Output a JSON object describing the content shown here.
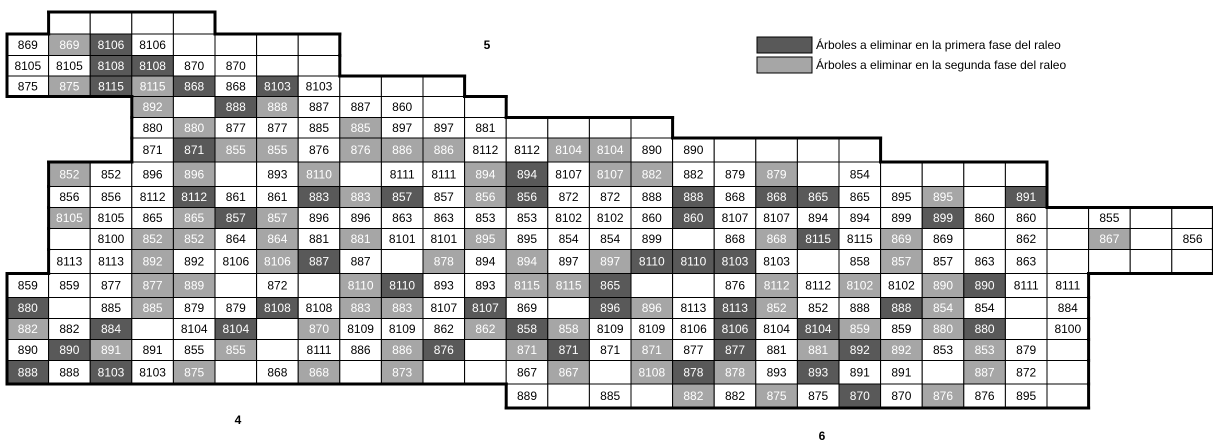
{
  "zones": [
    "5",
    "4",
    "6"
  ],
  "legend": [
    {
      "shade": "dark",
      "color": "#595959",
      "label": "Árboles a eliminar en la primera fase del raleo"
    },
    {
      "shade": "light",
      "color": "#a6a6a6",
      "label": "Árboles a eliminar en la segunda fase del raleo"
    }
  ],
  "grid": {
    "rows": [
      [
        null,
        null,
        null,
        null
      ],
      [
        {
          "text": "869"
        },
        {
          "text": "869",
          "shade": "light"
        },
        {
          "text": "8106",
          "shade": "dark"
        },
        {
          "text": "8106"
        },
        null,
        null,
        null,
        null
      ],
      [
        {
          "text": "8105"
        },
        {
          "text": "8105"
        },
        {
          "text": "8108",
          "shade": "dark"
        },
        {
          "text": "8108",
          "shade": "dark"
        },
        {
          "text": "870"
        },
        {
          "text": "870"
        },
        null,
        null
      ],
      [
        {
          "text": "875"
        },
        {
          "text": "875",
          "shade": "light"
        },
        {
          "text": "8115",
          "shade": "dark"
        },
        {
          "text": "8115",
          "shade": "light"
        },
        {
          "text": "868",
          "shade": "dark"
        },
        {
          "text": "868"
        },
        {
          "text": "8103",
          "shade": "dark"
        },
        {
          "text": "8103"
        },
        null,
        null,
        null
      ],
      [
        {
          "text": "892",
          "shade": "light"
        },
        null,
        {
          "text": "888",
          "shade": "dark"
        },
        {
          "text": "888",
          "shade": "light"
        },
        {
          "text": "887"
        },
        {
          "text": "887"
        },
        {
          "text": "860"
        },
        null,
        null
      ],
      [
        {
          "text": "880"
        },
        {
          "text": "880",
          "shade": "light"
        },
        {
          "text": "877"
        },
        {
          "text": "877"
        },
        {
          "text": "885"
        },
        {
          "text": "885",
          "shade": "light"
        },
        {
          "text": "897"
        },
        {
          "text": "897"
        },
        {
          "text": "881"
        },
        null,
        null,
        null,
        null
      ],
      [
        {
          "text": "871"
        },
        {
          "text": "871",
          "shade": "dark"
        },
        {
          "text": "855",
          "shade": "light"
        },
        {
          "text": "855",
          "shade": "light"
        },
        {
          "text": "876"
        },
        {
          "text": "876",
          "shade": "light"
        },
        {
          "text": "886",
          "shade": "light"
        },
        {
          "text": "886",
          "shade": "light"
        },
        {
          "text": "8112"
        },
        {
          "text": "8112"
        },
        {
          "text": "8104",
          "shade": "light"
        },
        {
          "text": "8104",
          "shade": "light"
        },
        {
          "text": "890"
        },
        {
          "text": "890"
        },
        null,
        null,
        null,
        null
      ],
      [
        {
          "text": "852",
          "shade": "light"
        },
        {
          "text": "852"
        },
        {
          "text": "896"
        },
        {
          "text": "896",
          "shade": "light"
        },
        null,
        {
          "text": "893"
        },
        {
          "text": "8110",
          "shade": "light"
        },
        null,
        {
          "text": "8111"
        },
        {
          "text": "8111"
        },
        {
          "text": "894",
          "shade": "light"
        },
        {
          "text": "894",
          "shade": "dark"
        },
        {
          "text": "8107"
        },
        {
          "text": "8107",
          "shade": "light"
        },
        {
          "text": "882",
          "shade": "light"
        },
        {
          "text": "882"
        },
        {
          "text": "879"
        },
        {
          "text": "879",
          "shade": "light"
        },
        null,
        {
          "text": "854"
        },
        null,
        null,
        null,
        null
      ],
      [
        {
          "text": "856"
        },
        {
          "text": "856"
        },
        {
          "text": "8112"
        },
        {
          "text": "8112",
          "shade": "dark"
        },
        {
          "text": "861"
        },
        {
          "text": "861"
        },
        {
          "text": "883",
          "shade": "dark"
        },
        {
          "text": "883",
          "shade": "light"
        },
        {
          "text": "857",
          "shade": "dark"
        },
        {
          "text": "857"
        },
        {
          "text": "856",
          "shade": "light"
        },
        {
          "text": "856",
          "shade": "dark"
        },
        {
          "text": "872"
        },
        {
          "text": "872"
        },
        {
          "text": "888"
        },
        {
          "text": "888",
          "shade": "dark"
        },
        {
          "text": "868"
        },
        {
          "text": "868",
          "shade": "dark"
        },
        {
          "text": "865",
          "shade": "dark"
        },
        {
          "text": "865"
        },
        {
          "text": "895"
        },
        {
          "text": "895",
          "shade": "light"
        },
        null,
        {
          "text": "891",
          "shade": "dark"
        }
      ],
      [
        {
          "text": "8105",
          "shade": "light"
        },
        {
          "text": "8105"
        },
        {
          "text": "865"
        },
        {
          "text": "865",
          "shade": "light"
        },
        {
          "text": "857",
          "shade": "dark"
        },
        {
          "text": "857",
          "shade": "light"
        },
        {
          "text": "896"
        },
        {
          "text": "896"
        },
        {
          "text": "863"
        },
        {
          "text": "863"
        },
        {
          "text": "853"
        },
        {
          "text": "853"
        },
        {
          "text": "8102"
        },
        {
          "text": "8102"
        },
        {
          "text": "860"
        },
        {
          "text": "860",
          "shade": "dark"
        },
        {
          "text": "8107"
        },
        {
          "text": "8107"
        },
        {
          "text": "894"
        },
        {
          "text": "894"
        },
        {
          "text": "899"
        },
        {
          "text": "899",
          "shade": "dark"
        },
        {
          "text": "860"
        },
        {
          "text": "860"
        },
        null,
        {
          "text": "855"
        },
        null,
        null
      ],
      [
        null,
        {
          "text": "8100"
        },
        {
          "text": "852",
          "shade": "light"
        },
        {
          "text": "852",
          "shade": "light"
        },
        {
          "text": "864"
        },
        {
          "text": "864",
          "shade": "light"
        },
        {
          "text": "881"
        },
        {
          "text": "881",
          "shade": "light"
        },
        {
          "text": "8101"
        },
        {
          "text": "8101"
        },
        {
          "text": "895",
          "shade": "light"
        },
        {
          "text": "895"
        },
        {
          "text": "854"
        },
        {
          "text": "854"
        },
        {
          "text": "899"
        },
        null,
        {
          "text": "868"
        },
        {
          "text": "868",
          "shade": "light"
        },
        {
          "text": "8115",
          "shade": "dark"
        },
        {
          "text": "8115"
        },
        {
          "text": "869",
          "shade": "light"
        },
        {
          "text": "869"
        },
        null,
        {
          "text": "862"
        },
        null,
        {
          "text": "867",
          "shade": "light"
        },
        null,
        {
          "text": "856"
        }
      ],
      [
        {
          "text": "8113"
        },
        {
          "text": "8113"
        },
        {
          "text": "892",
          "shade": "light"
        },
        {
          "text": "892"
        },
        {
          "text": "8106"
        },
        {
          "text": "8106",
          "shade": "light"
        },
        {
          "text": "887",
          "shade": "dark"
        },
        {
          "text": "887"
        },
        null,
        {
          "text": "878",
          "shade": "light"
        },
        {
          "text": "894"
        },
        {
          "text": "894",
          "shade": "light"
        },
        {
          "text": "897"
        },
        {
          "text": "897",
          "shade": "light"
        },
        {
          "text": "8110",
          "shade": "dark"
        },
        {
          "text": "8110",
          "shade": "dark"
        },
        {
          "text": "8103",
          "shade": "dark"
        },
        {
          "text": "8103"
        },
        null,
        {
          "text": "858"
        },
        {
          "text": "857",
          "shade": "light"
        },
        {
          "text": "857"
        },
        {
          "text": "863"
        },
        {
          "text": "863"
        },
        null,
        null,
        null,
        null
      ],
      [
        {
          "text": "859"
        },
        {
          "text": "859"
        },
        {
          "text": "877"
        },
        {
          "text": "877",
          "shade": "light"
        },
        {
          "text": "889",
          "shade": "light"
        },
        null,
        {
          "text": "872"
        },
        null,
        {
          "text": "8110",
          "shade": "light"
        },
        {
          "text": "8110",
          "shade": "dark"
        },
        {
          "text": "893"
        },
        {
          "text": "893"
        },
        {
          "text": "8115",
          "shade": "light"
        },
        {
          "text": "8115",
          "shade": "light"
        },
        {
          "text": "865",
          "shade": "dark"
        },
        null,
        null,
        {
          "text": "876"
        },
        {
          "text": "8112",
          "shade": "light"
        },
        {
          "text": "8112"
        },
        {
          "text": "8102",
          "shade": "light"
        },
        {
          "text": "8102"
        },
        {
          "text": "890",
          "shade": "light"
        },
        {
          "text": "890",
          "shade": "dark"
        },
        {
          "text": "8111"
        },
        {
          "text": "8111"
        }
      ],
      [
        {
          "text": "880",
          "shade": "dark"
        },
        null,
        {
          "text": "885"
        },
        {
          "text": "885",
          "shade": "light"
        },
        {
          "text": "879"
        },
        {
          "text": "879"
        },
        {
          "text": "8108",
          "shade": "dark"
        },
        {
          "text": "8108"
        },
        {
          "text": "883",
          "shade": "light"
        },
        {
          "text": "883",
          "shade": "light"
        },
        {
          "text": "8107"
        },
        {
          "text": "8107",
          "shade": "dark"
        },
        {
          "text": "869"
        },
        null,
        {
          "text": "896",
          "shade": "dark"
        },
        {
          "text": "896",
          "shade": "light"
        },
        {
          "text": "8113"
        },
        {
          "text": "8113",
          "shade": "dark"
        },
        {
          "text": "852",
          "shade": "light"
        },
        {
          "text": "852"
        },
        {
          "text": "888"
        },
        {
          "text": "888",
          "shade": "dark"
        },
        {
          "text": "854",
          "shade": "light"
        },
        {
          "text": "854"
        },
        null,
        {
          "text": "884"
        }
      ],
      [
        {
          "text": "882",
          "shade": "light"
        },
        {
          "text": "882"
        },
        {
          "text": "884",
          "shade": "dark"
        },
        null,
        {
          "text": "8104"
        },
        {
          "text": "8104",
          "shade": "dark"
        },
        null,
        {
          "text": "870",
          "shade": "light"
        },
        {
          "text": "8109"
        },
        {
          "text": "8109"
        },
        {
          "text": "862"
        },
        {
          "text": "862",
          "shade": "light"
        },
        {
          "text": "858",
          "shade": "dark"
        },
        {
          "text": "858",
          "shade": "light"
        },
        {
          "text": "8109"
        },
        {
          "text": "8109"
        },
        {
          "text": "8106"
        },
        {
          "text": "8106",
          "shade": "dark"
        },
        {
          "text": "8104"
        },
        {
          "text": "8104",
          "shade": "dark"
        },
        {
          "text": "859",
          "shade": "light"
        },
        {
          "text": "859"
        },
        {
          "text": "880",
          "shade": "light"
        },
        {
          "text": "880",
          "shade": "dark"
        },
        null,
        {
          "text": "8100"
        }
      ],
      [
        {
          "text": "890"
        },
        {
          "text": "890",
          "shade": "dark"
        },
        {
          "text": "891",
          "shade": "light"
        },
        {
          "text": "891"
        },
        {
          "text": "855"
        },
        {
          "text": "855",
          "shade": "light"
        },
        null,
        {
          "text": "8111"
        },
        {
          "text": "886"
        },
        {
          "text": "886",
          "shade": "light"
        },
        {
          "text": "876",
          "shade": "dark"
        },
        null,
        {
          "text": "871",
          "shade": "light"
        },
        {
          "text": "871",
          "shade": "dark"
        },
        {
          "text": "871"
        },
        {
          "text": "871",
          "shade": "light"
        },
        {
          "text": "877"
        },
        {
          "text": "877",
          "shade": "dark"
        },
        {
          "text": "881"
        },
        {
          "text": "881",
          "shade": "light"
        },
        {
          "text": "892",
          "shade": "dark"
        },
        {
          "text": "892",
          "shade": "light"
        },
        {
          "text": "853"
        },
        {
          "text": "853",
          "shade": "light"
        },
        {
          "text": "879"
        },
        null
      ],
      [
        {
          "text": "888",
          "shade": "dark"
        },
        {
          "text": "888"
        },
        {
          "text": "8103",
          "shade": "dark"
        },
        {
          "text": "8103"
        },
        {
          "text": "875",
          "shade": "light"
        },
        null,
        {
          "text": "868"
        },
        {
          "text": "868",
          "shade": "light"
        },
        null,
        {
          "text": "873",
          "shade": "light"
        },
        null,
        null,
        {
          "text": "867"
        },
        {
          "text": "867",
          "shade": "light"
        },
        null,
        {
          "text": "8108",
          "shade": "light"
        },
        {
          "text": "878",
          "shade": "dark"
        },
        {
          "text": "878",
          "shade": "light"
        },
        {
          "text": "893"
        },
        {
          "text": "893",
          "shade": "dark"
        },
        {
          "text": "891"
        },
        {
          "text": "891"
        },
        null,
        {
          "text": "887",
          "shade": "light"
        },
        {
          "text": "872"
        },
        null
      ],
      [
        {
          "text": "889"
        },
        null,
        {
          "text": "885"
        },
        null,
        {
          "text": "882",
          "shade": "light"
        },
        {
          "text": "882"
        },
        {
          "text": "875",
          "shade": "light"
        },
        {
          "text": "875"
        },
        {
          "text": "870",
          "shade": "dark"
        },
        {
          "text": "870"
        },
        {
          "text": "876",
          "shade": "light"
        },
        {
          "text": "876"
        },
        {
          "text": "895"
        },
        null
      ]
    ]
  }
}
